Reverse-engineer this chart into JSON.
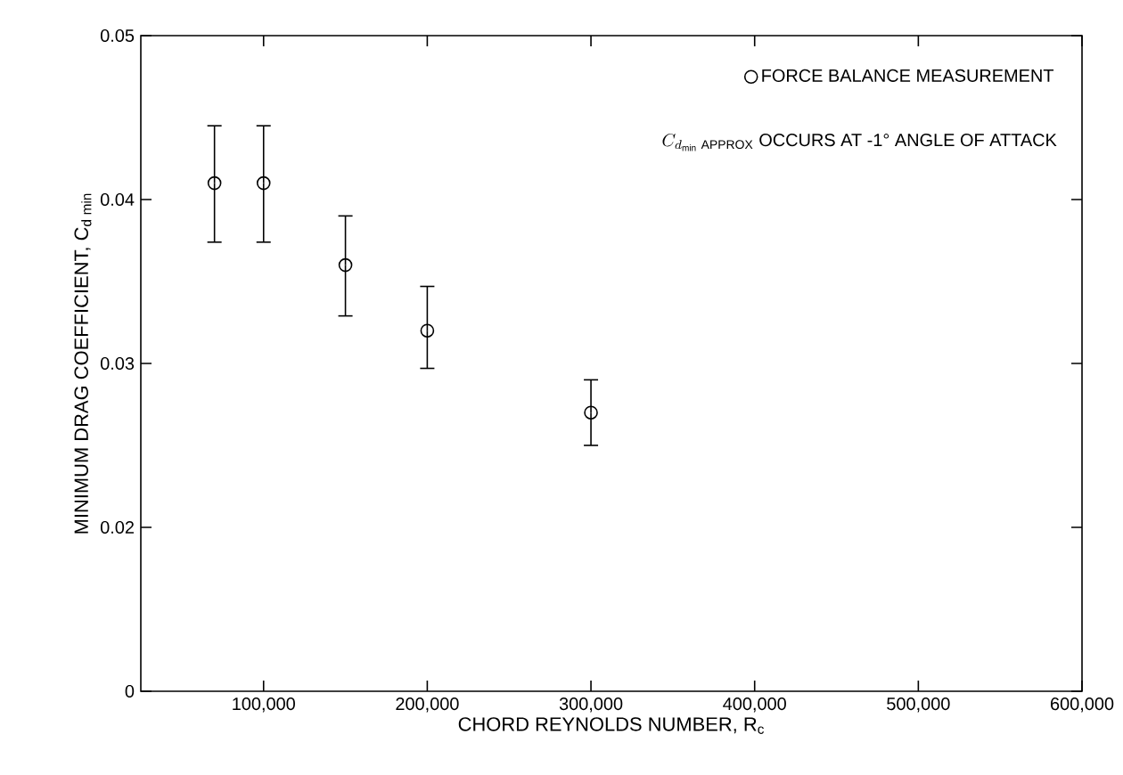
{
  "chart_data": {
    "type": "scatter",
    "xlabel": "CHORD REYNOLDS NUMBER, R$_{c}$",
    "ylabel": "\\mbox{MINIMUM DRAG COEFFICIENT, }\\mathrm{C}_{\\mathrm{d}\\;\\mathrm{min}}",
    "x": [
      70000,
      100000,
      150000,
      200000,
      300000
    ],
    "series": [
      {
        "name": "FORCE BALANCE MEASUREMENT",
        "color": "#000000",
        "values": [
          0.041,
          0.041,
          0.036,
          0.032,
          0.027
        ],
        "errors": [
          [
            0.0374,
            0.0445
          ],
          [
            0.0374,
            0.0445
          ],
          [
            0.0329,
            0.039
          ],
          [
            0.0297,
            0.0347
          ],
          [
            0.025,
            0.029
          ]
        ]
      }
    ],
    "xlim": [
      25000,
      600000
    ],
    "xticks": [
      {
        "value": 100000,
        "label": "100,000"
      },
      {
        "value": 200000,
        "label": "200,000"
      },
      {
        "value": 300000,
        "label": "300,000"
      },
      {
        "value": 400000,
        "label": "400,000"
      },
      {
        "value": 500000,
        "label": "500,000"
      },
      {
        "value": 600000,
        "label": "600,000"
      }
    ],
    "ylim": [
      0.01,
      0.05
    ],
    "yticks": [
      {
        "value": 0.01,
        "label": "0"
      },
      0.02,
      0.03,
      0.04,
      0.05
    ],
    "marker": "circle",
    "legend": "top right",
    "annotations": [
      "C_{d_{\\mathrm{min}}\\;\\mathrm{APPROX}}",
      "OCCURS AT -1° ANGLE OF ATTACK"
    ]
  }
}
